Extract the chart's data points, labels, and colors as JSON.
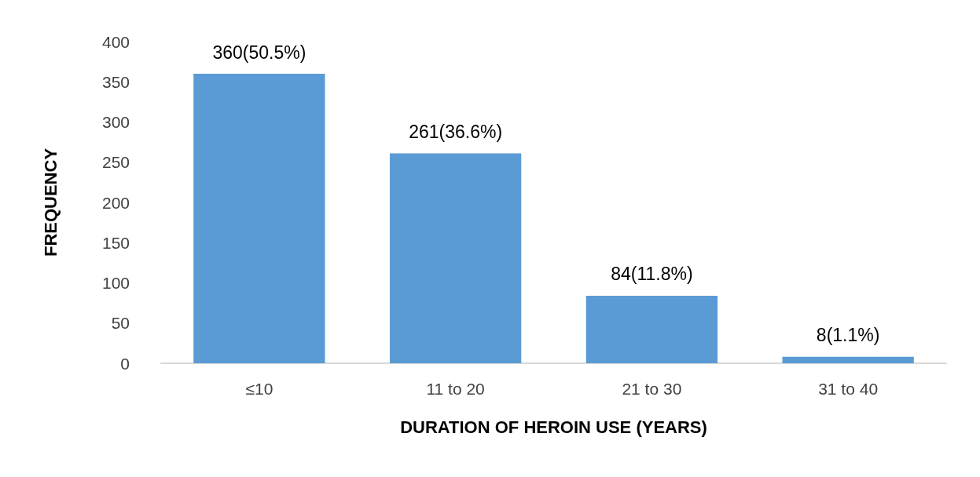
{
  "chart_data": {
    "type": "bar",
    "xlabel": "DURATION OF HEROIN USE (YEARS)",
    "ylabel": "FREQUENCY",
    "categories": [
      "≤10",
      "11 to 20",
      "21 to 30",
      "31 to 40"
    ],
    "values": [
      360,
      261,
      84,
      8
    ],
    "value_labels": [
      "360(50.5%)",
      "261(36.6%)",
      "84(11.8%)",
      "8(1.1%)"
    ],
    "color": "#5b9bd5",
    "ylim": [
      0,
      400
    ],
    "yticks": [
      0,
      50,
      100,
      150,
      200,
      250,
      300,
      350,
      400
    ],
    "grid": false
  }
}
